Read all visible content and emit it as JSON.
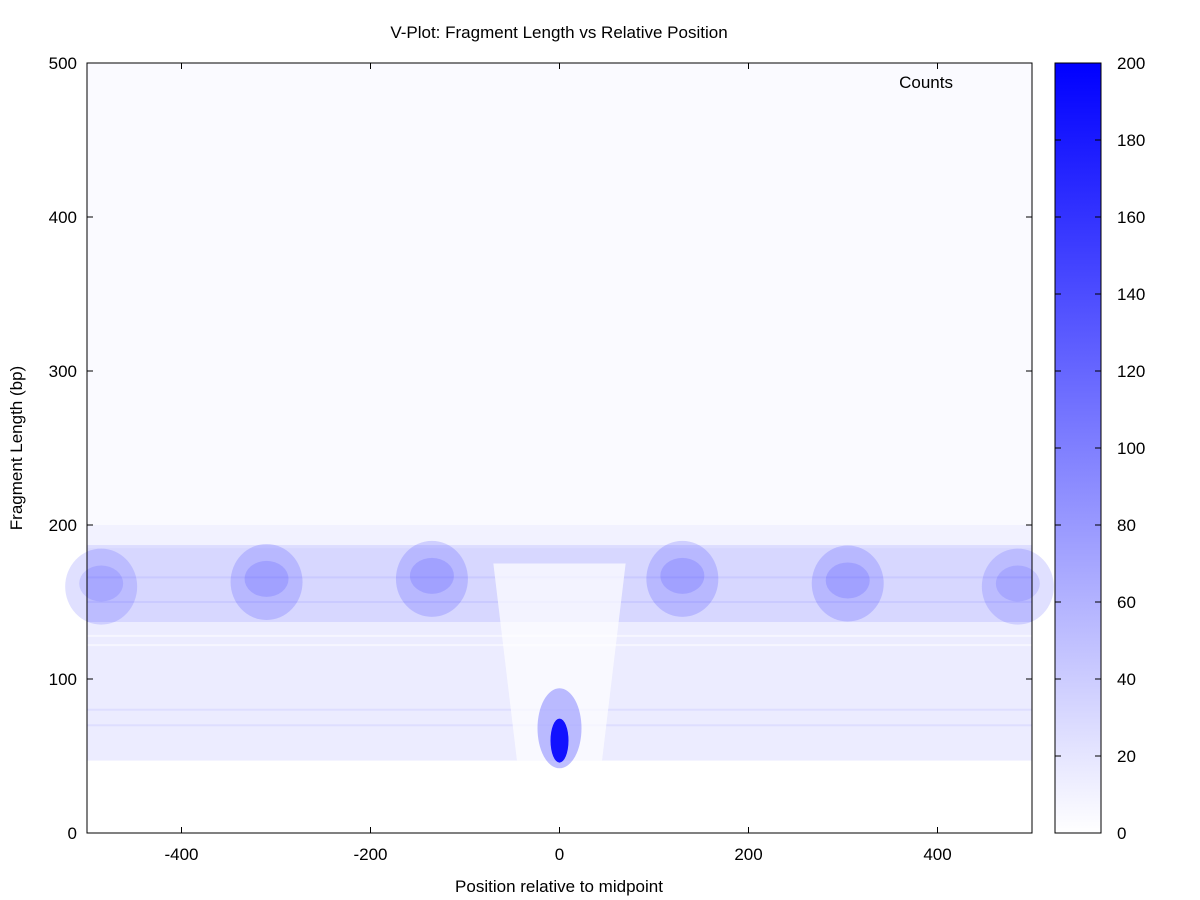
{
  "chart_data": {
    "type": "heatmap",
    "title": "V-Plot: Fragment Length vs Relative Position",
    "xlabel": "Position relative to midpoint",
    "ylabel": "Fragment Length (bp)",
    "xlim": [
      -500,
      500
    ],
    "ylim": [
      0,
      500
    ],
    "x_ticks": [
      -400,
      -200,
      0,
      200,
      400
    ],
    "y_ticks": [
      0,
      100,
      200,
      300,
      400,
      500
    ],
    "colorbar": {
      "label": "Counts",
      "range": [
        0,
        200
      ],
      "ticks": [
        0,
        20,
        40,
        60,
        80,
        100,
        120,
        140,
        160,
        180,
        200
      ],
      "color_low": "#ffffff",
      "color_high": "#0000ff"
    },
    "data_fragment_length_range": [
      47,
      200
    ],
    "nucleosome_band": {
      "center_length": 165,
      "count": 50
    },
    "nucleosome_peaks": [
      {
        "x": -485,
        "y": 160,
        "count": 70
      },
      {
        "x": -310,
        "y": 163,
        "count": 80
      },
      {
        "x": -135,
        "y": 165,
        "count": 80
      },
      {
        "x": 130,
        "y": 165,
        "count": 80
      },
      {
        "x": 305,
        "y": 162,
        "count": 80
      },
      {
        "x": 485,
        "y": 160,
        "count": 70
      }
    ],
    "subnucleosomal_band": {
      "length_range": [
        47,
        120
      ],
      "count": 25
    },
    "central_peak": {
      "x": 0,
      "y": 60,
      "count": 200
    },
    "grid": false,
    "legend": "top-right"
  }
}
